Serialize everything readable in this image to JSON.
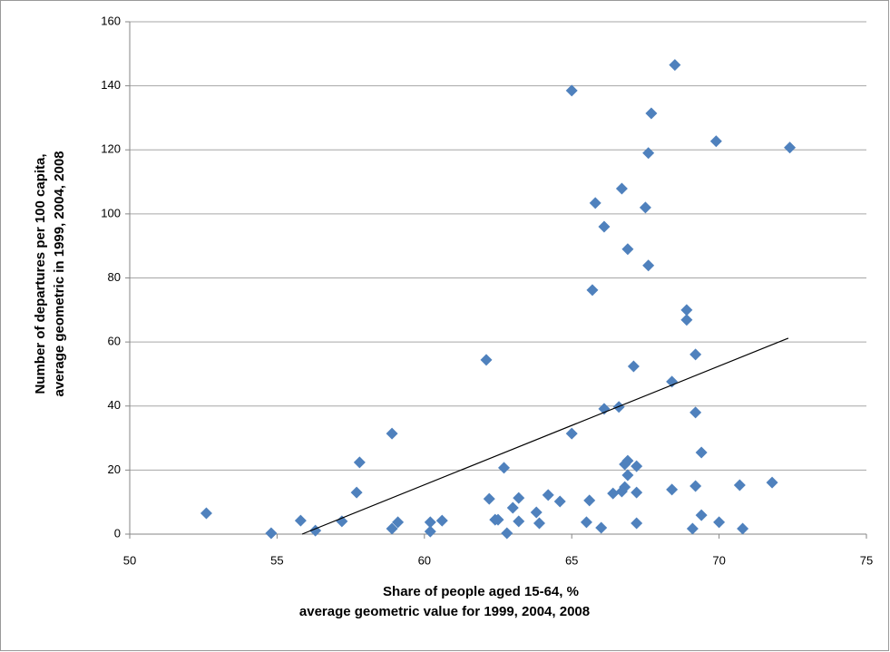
{
  "chart_data": {
    "type": "scatter",
    "xlabel": [
      "Share of people aged 15-64, %",
      "average geometric value for 1999, 2004, 2008"
    ],
    "ylabel": [
      "Number of departures per 100 capita,",
      "average geometric in 1999, 2004, 2008"
    ],
    "x": [
      52.6,
      54.8,
      55.8,
      56.3,
      57.2,
      57.7,
      57.8,
      58.9,
      58.9,
      59.1,
      60.2,
      60.2,
      60.6,
      62.1,
      62.2,
      62.4,
      62.5,
      62.7,
      62.8,
      63.0,
      63.2,
      63.2,
      63.8,
      63.9,
      64.2,
      64.6,
      65.0,
      65.0,
      65.5,
      65.6,
      65.7,
      65.8,
      66.0,
      66.1,
      66.1,
      66.4,
      66.6,
      66.7,
      66.7,
      66.8,
      66.8,
      66.9,
      66.9,
      66.9,
      67.1,
      67.2,
      67.2,
      67.2,
      67.5,
      67.6,
      67.6,
      67.7,
      68.4,
      68.4,
      68.5,
      68.9,
      68.9,
      69.1,
      69.2,
      69.2,
      69.2,
      69.4,
      69.4,
      69.9,
      70.0,
      70.7,
      70.8,
      71.8,
      72.4
    ],
    "series": [
      {
        "color": "#4f81bd",
        "values": [
          6.5,
          0.3,
          4.2,
          1.1,
          4.0,
          13.0,
          22.4,
          1.7,
          31.4,
          3.7,
          0.8,
          3.7,
          4.2,
          54.4,
          11.0,
          4.5,
          4.5,
          20.7,
          0.3,
          8.2,
          11.3,
          4.0,
          6.8,
          3.4,
          12.2,
          10.2,
          138.5,
          31.4,
          3.7,
          10.5,
          76.2,
          103.4,
          2.0,
          96.0,
          39.1,
          12.7,
          39.7,
          13.3,
          107.9,
          21.8,
          14.7,
          18.4,
          89.0,
          22.9,
          52.4,
          13.0,
          3.4,
          21.2,
          102.0,
          119.0,
          83.9,
          131.4,
          13.9,
          47.6,
          146.5,
          70.0,
          66.9,
          1.7,
          56.1,
          38.0,
          15.0,
          25.5,
          5.9,
          122.7,
          3.7,
          15.3,
          1.7,
          16.1,
          120.7
        ]
      }
    ],
    "trendline": {
      "x": [
        55.85,
        72.35
      ],
      "y": [
        0,
        61.2
      ],
      "color": "#000000"
    },
    "xlim": [
      50,
      75
    ],
    "xticks": [
      50,
      55,
      60,
      65,
      70,
      75
    ],
    "ylim": [
      0,
      160
    ],
    "yticks": [
      0,
      20,
      40,
      60,
      80,
      100,
      120,
      140,
      160
    ],
    "grid": true
  }
}
